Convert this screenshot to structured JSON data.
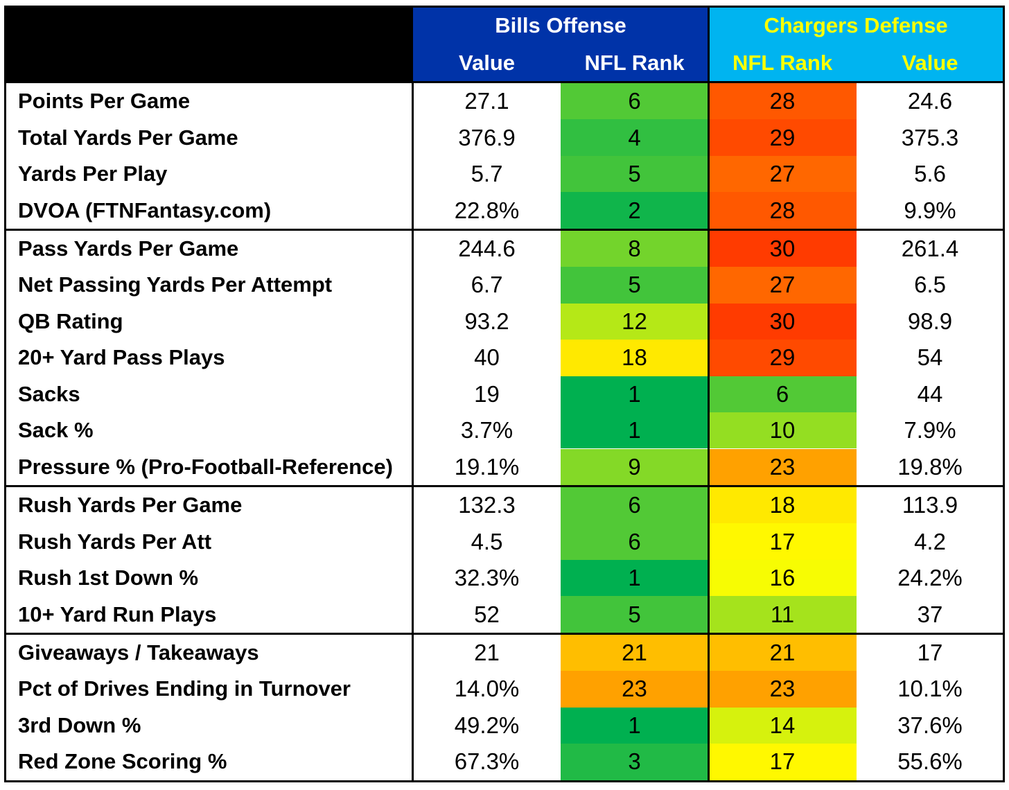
{
  "colors": {
    "bills_header_bg": "#0033A8",
    "bills_header_text": "#FFFFFF",
    "chargers_header_bg": "#00B4F0",
    "chargers_header_text": "#FFFF00",
    "corner_bg": "#000000"
  },
  "chart_data": {
    "type": "table",
    "groups": [
      {
        "name": "Bills Offense",
        "columns": [
          "Value",
          "NFL Rank"
        ]
      },
      {
        "name": "Chargers Defense",
        "columns": [
          "NFL Rank",
          "Value"
        ]
      }
    ],
    "sections": [
      {
        "rows": [
          {
            "label": "Points Per Game",
            "bills_value": "27.1",
            "bills_rank": "6",
            "chargers_rank": "28",
            "chargers_value": "24.6"
          },
          {
            "label": "Total Yards Per Game",
            "bills_value": "376.9",
            "bills_rank": "4",
            "chargers_rank": "29",
            "chargers_value": "375.3"
          },
          {
            "label": "Yards Per Play",
            "bills_value": "5.7",
            "bills_rank": "5",
            "chargers_rank": "27",
            "chargers_value": "5.6"
          },
          {
            "label": "DVOA (FTNFantasy.com)",
            "bills_value": "22.8%",
            "bills_rank": "2",
            "chargers_rank": "28",
            "chargers_value": "9.9%"
          }
        ]
      },
      {
        "rows": [
          {
            "label": "Pass Yards Per Game",
            "bills_value": "244.6",
            "bills_rank": "8",
            "chargers_rank": "30",
            "chargers_value": "261.4"
          },
          {
            "label": "Net Passing Yards Per Attempt",
            "bills_value": "6.7",
            "bills_rank": "5",
            "chargers_rank": "27",
            "chargers_value": "6.5"
          },
          {
            "label": "QB Rating",
            "bills_value": "93.2",
            "bills_rank": "12",
            "chargers_rank": "30",
            "chargers_value": "98.9"
          },
          {
            "label": "20+ Yard Pass Plays",
            "bills_value": "40",
            "bills_rank": "18",
            "chargers_rank": "29",
            "chargers_value": "54"
          },
          {
            "label": "Sacks",
            "bills_value": "19",
            "bills_rank": "1",
            "chargers_rank": "6",
            "chargers_value": "44"
          },
          {
            "label": "Sack %",
            "bills_value": "3.7%",
            "bills_rank": "1",
            "chargers_rank": "10",
            "chargers_value": "7.9%"
          },
          {
            "label": "Pressure % (Pro-Football-Reference)",
            "bills_value": "19.1%",
            "bills_rank": "9",
            "chargers_rank": "23",
            "chargers_value": "19.8%"
          }
        ]
      },
      {
        "rows": [
          {
            "label": "Rush Yards Per Game",
            "bills_value": "132.3",
            "bills_rank": "6",
            "chargers_rank": "18",
            "chargers_value": "113.9"
          },
          {
            "label": "Rush Yards Per Att",
            "bills_value": "4.5",
            "bills_rank": "6",
            "chargers_rank": "17",
            "chargers_value": "4.2"
          },
          {
            "label": "Rush 1st Down %",
            "bills_value": "32.3%",
            "bills_rank": "1",
            "chargers_rank": "16",
            "chargers_value": "24.2%"
          },
          {
            "label": "10+ Yard Run Plays",
            "bills_value": "52",
            "bills_rank": "5",
            "chargers_rank": "11",
            "chargers_value": "37"
          }
        ]
      },
      {
        "rows": [
          {
            "label": "Giveaways / Takeaways",
            "bills_value": "21",
            "bills_rank": "21",
            "chargers_rank": "21",
            "chargers_value": "17"
          },
          {
            "label": "Pct of Drives Ending in Turnover",
            "bills_value": "14.0%",
            "bills_rank": "23",
            "chargers_rank": "23",
            "chargers_value": "10.1%"
          },
          {
            "label": "3rd Down %",
            "bills_value": "49.2%",
            "bills_rank": "1",
            "chargers_rank": "14",
            "chargers_value": "37.6%"
          },
          {
            "label": "Red Zone Scoring %",
            "bills_value": "67.3%",
            "bills_rank": "3",
            "chargers_rank": "17",
            "chargers_value": "55.6%"
          }
        ]
      }
    ]
  }
}
